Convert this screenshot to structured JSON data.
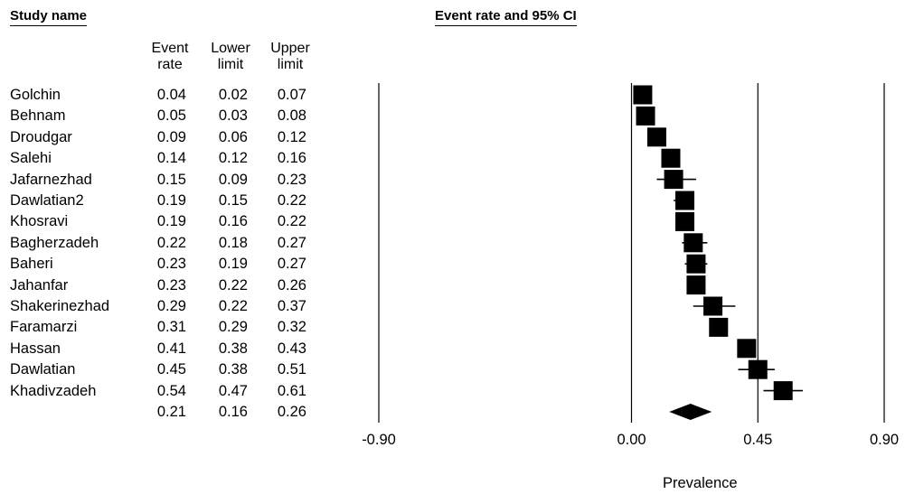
{
  "headers": {
    "study_name": "Study name",
    "plot_title": "Event rate and 95% CI",
    "event_rate": [
      "Event",
      "rate"
    ],
    "lower_limit": [
      "Lower",
      "limit"
    ],
    "upper_limit": [
      "Upper",
      "limit"
    ]
  },
  "chart_data": {
    "type": "forest",
    "title": "Event rate and 95% CI",
    "xlabel": "Prevalence",
    "xlim": [
      -0.9,
      0.9
    ],
    "xticks": [
      "-0.90",
      "0.00",
      "0.45",
      "0.90"
    ],
    "studies": [
      {
        "name": "Golchin",
        "rate": "0.04",
        "lower": "0.02",
        "upper": "0.07",
        "rv": 0.04,
        "lv": 0.02,
        "uv": 0.07
      },
      {
        "name": "Behnam",
        "rate": "0.05",
        "lower": "0.03",
        "upper": "0.08",
        "rv": 0.05,
        "lv": 0.03,
        "uv": 0.08
      },
      {
        "name": "Droudgar",
        "rate": "0.09",
        "lower": "0.06",
        "upper": "0.12",
        "rv": 0.09,
        "lv": 0.06,
        "uv": 0.12
      },
      {
        "name": "Salehi",
        "rate": "0.14",
        "lower": "0.12",
        "upper": "0.16",
        "rv": 0.14,
        "lv": 0.12,
        "uv": 0.16
      },
      {
        "name": "Jafarnezhad",
        "rate": "0.15",
        "lower": "0.09",
        "upper": "0.23",
        "rv": 0.15,
        "lv": 0.09,
        "uv": 0.23
      },
      {
        "name": "Dawlatian2",
        "rate": "0.19",
        "lower": "0.15",
        "upper": "0.22",
        "rv": 0.19,
        "lv": 0.15,
        "uv": 0.22
      },
      {
        "name": "Khosravi",
        "rate": "0.19",
        "lower": "0.16",
        "upper": "0.22",
        "rv": 0.19,
        "lv": 0.16,
        "uv": 0.22
      },
      {
        "name": "Bagherzadeh",
        "rate": "0.22",
        "lower": "0.18",
        "upper": "0.27",
        "rv": 0.22,
        "lv": 0.18,
        "uv": 0.27
      },
      {
        "name": "Baheri",
        "rate": "0.23",
        "lower": "0.19",
        "upper": "0.27",
        "rv": 0.23,
        "lv": 0.19,
        "uv": 0.27
      },
      {
        "name": "Jahanfar",
        "rate": "0.23",
        "lower": "0.22",
        "upper": "0.26",
        "rv": 0.23,
        "lv": 0.22,
        "uv": 0.26
      },
      {
        "name": "Shakerinezhad",
        "rate": "0.29",
        "lower": "0.22",
        "upper": "0.37",
        "rv": 0.29,
        "lv": 0.22,
        "uv": 0.37
      },
      {
        "name": "Faramarzi",
        "rate": "0.31",
        "lower": "0.29",
        "upper": "0.32",
        "rv": 0.31,
        "lv": 0.29,
        "uv": 0.32
      },
      {
        "name": "Hassan",
        "rate": "0.41",
        "lower": "0.38",
        "upper": "0.43",
        "rv": 0.41,
        "lv": 0.38,
        "uv": 0.43
      },
      {
        "name": "Dawlatian",
        "rate": "0.45",
        "lower": "0.38",
        "upper": "0.51",
        "rv": 0.45,
        "lv": 0.38,
        "uv": 0.51
      },
      {
        "name": "Khadivzadeh",
        "rate": "0.54",
        "lower": "0.47",
        "upper": "0.61",
        "rv": 0.54,
        "lv": 0.47,
        "uv": 0.61
      }
    ],
    "summary": {
      "rate": "0.21",
      "lower": "0.16",
      "upper": "0.26",
      "rv": 0.21,
      "lv": 0.16,
      "uv": 0.26
    }
  }
}
